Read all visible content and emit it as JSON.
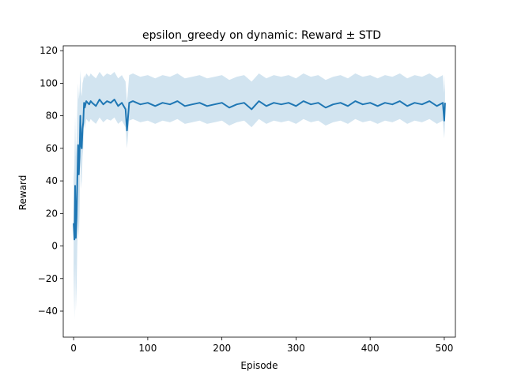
{
  "chart_data": {
    "type": "line",
    "title": "epsilon_greedy on dynamic: Reward ± STD",
    "xlabel": "Episode",
    "ylabel": "Reward",
    "xlim": [
      -14,
      515
    ],
    "ylim": [
      -56,
      123
    ],
    "xticks": [
      0,
      100,
      200,
      300,
      400,
      500
    ],
    "yticks": [
      -40,
      -20,
      0,
      20,
      40,
      60,
      80,
      100,
      120
    ],
    "grid": false,
    "legend": "none",
    "line_color": "#1f77b4",
    "band_color": "#1f77b4",
    "series": [
      {
        "x": [
          0,
          1,
          2,
          3,
          4,
          5,
          6,
          7,
          8,
          9,
          10,
          11,
          12,
          13,
          14,
          15,
          17,
          19,
          21,
          23,
          25,
          30,
          35,
          40,
          45,
          50,
          55,
          60,
          65,
          70,
          72,
          75,
          80,
          90,
          100,
          110,
          120,
          130,
          140,
          150,
          160,
          170,
          180,
          190,
          200,
          210,
          220,
          230,
          240,
          250,
          260,
          270,
          280,
          290,
          300,
          310,
          320,
          330,
          340,
          350,
          360,
          370,
          380,
          390,
          400,
          410,
          420,
          430,
          440,
          450,
          460,
          470,
          480,
          490,
          498,
          500,
          501
        ],
        "y": [
          14,
          4,
          37,
          5,
          18,
          41,
          62,
          44,
          55,
          80,
          62,
          60,
          72,
          76,
          88,
          85,
          89,
          88,
          87,
          89,
          88,
          86,
          90,
          87,
          89,
          88,
          90,
          86,
          88,
          84,
          71,
          88,
          89,
          87,
          88,
          86,
          88,
          87,
          89,
          86,
          87,
          88,
          86,
          87,
          88,
          85,
          87,
          88,
          84,
          89,
          86,
          88,
          87,
          88,
          86,
          89,
          87,
          88,
          85,
          87,
          88,
          86,
          89,
          87,
          88,
          86,
          88,
          87,
          89,
          86,
          88,
          87,
          89,
          86,
          88,
          77,
          88
        ],
        "lower": [
          -15,
          -45,
          -10,
          -40,
          -25,
          0,
          15,
          5,
          20,
          55,
          35,
          40,
          55,
          60,
          75,
          72,
          78,
          77,
          76,
          78,
          77,
          75,
          79,
          76,
          78,
          77,
          79,
          75,
          77,
          73,
          60,
          77,
          78,
          76,
          77,
          75,
          77,
          76,
          78,
          75,
          76,
          77,
          75,
          76,
          77,
          74,
          76,
          77,
          73,
          78,
          75,
          77,
          76,
          77,
          75,
          78,
          76,
          77,
          74,
          76,
          77,
          75,
          78,
          76,
          77,
          75,
          77,
          76,
          78,
          75,
          77,
          76,
          78,
          75,
          77,
          66,
          77
        ],
        "upper": [
          40,
          50,
          80,
          55,
          65,
          85,
          100,
          90,
          95,
          108,
          95,
          92,
          100,
          102,
          105,
          103,
          106,
          105,
          104,
          106,
          105,
          103,
          107,
          104,
          106,
          105,
          107,
          103,
          105,
          101,
          88,
          105,
          106,
          104,
          105,
          103,
          105,
          104,
          106,
          103,
          104,
          105,
          103,
          104,
          105,
          102,
          104,
          105,
          101,
          106,
          103,
          105,
          104,
          105,
          103,
          106,
          104,
          105,
          102,
          104,
          105,
          103,
          106,
          104,
          105,
          103,
          105,
          104,
          106,
          103,
          105,
          104,
          106,
          103,
          105,
          94,
          105
        ]
      }
    ]
  }
}
